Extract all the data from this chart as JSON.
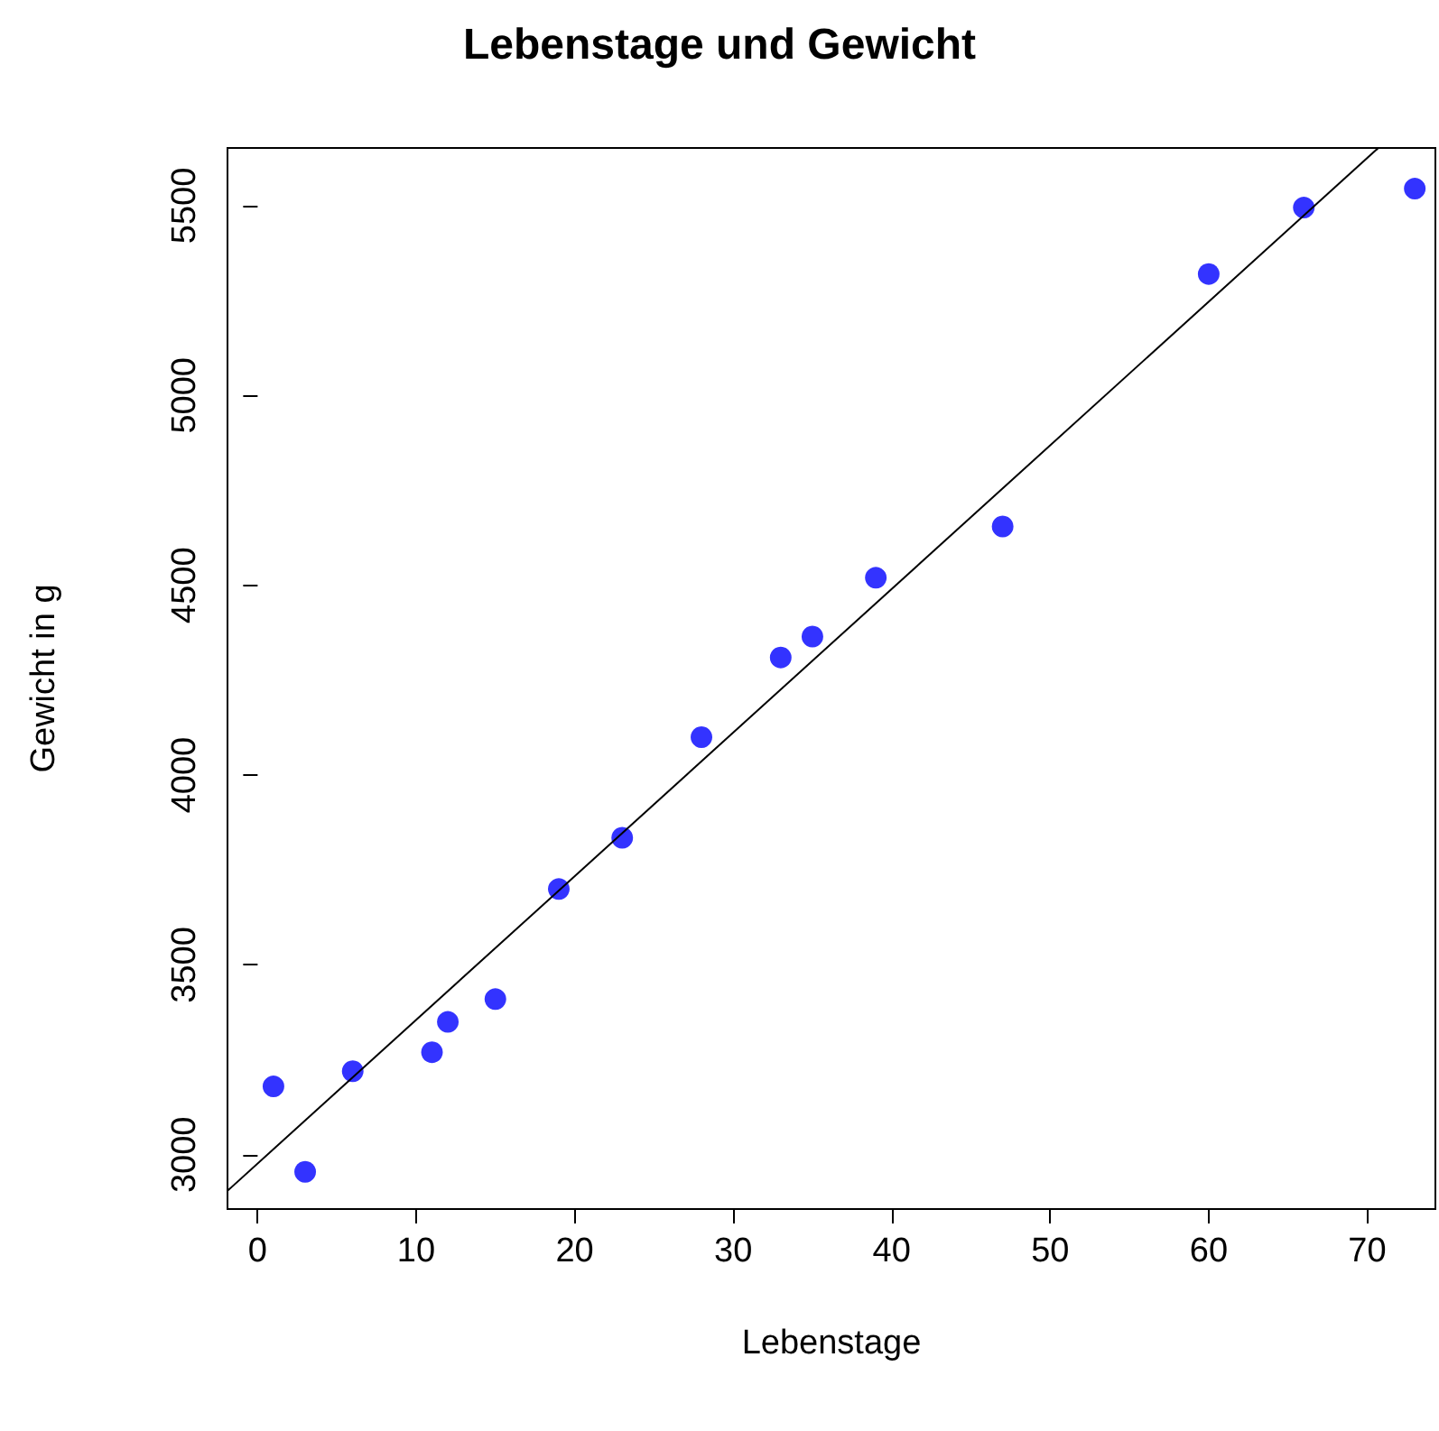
{
  "chart_data": {
    "type": "scatter",
    "title": "Lebenstage und Gewicht",
    "xlabel": "Lebenstage",
    "ylabel": "Gewicht in g",
    "x": [
      1,
      3,
      6,
      11,
      12,
      15,
      19,
      23,
      28,
      33,
      35,
      39,
      47,
      60,
      66,
      73
    ],
    "series": [
      {
        "color": "#0000ff",
        "values": [
          3180,
          2955,
          3220,
          3270,
          3350,
          3410,
          3700,
          3835,
          4100,
          4310,
          4365,
          4520,
          4655,
          5320,
          5495,
          5545
        ]
      },
      {
        "type": "line",
        "color": "#000000",
        "x": [
          -1.9,
          70.7
        ],
        "values": [
          2905,
          5652
        ],
        "marker": "none"
      }
    ],
    "xlim": [
      -1.9,
      74.3
    ],
    "ylim": [
      2857,
      5652
    ],
    "xticks": [
      0,
      10,
      20,
      30,
      40,
      50,
      60,
      70
    ],
    "yticks": [
      3000,
      3500,
      4000,
      4500,
      5000,
      5500
    ],
    "grid": false,
    "marker": "circle"
  }
}
